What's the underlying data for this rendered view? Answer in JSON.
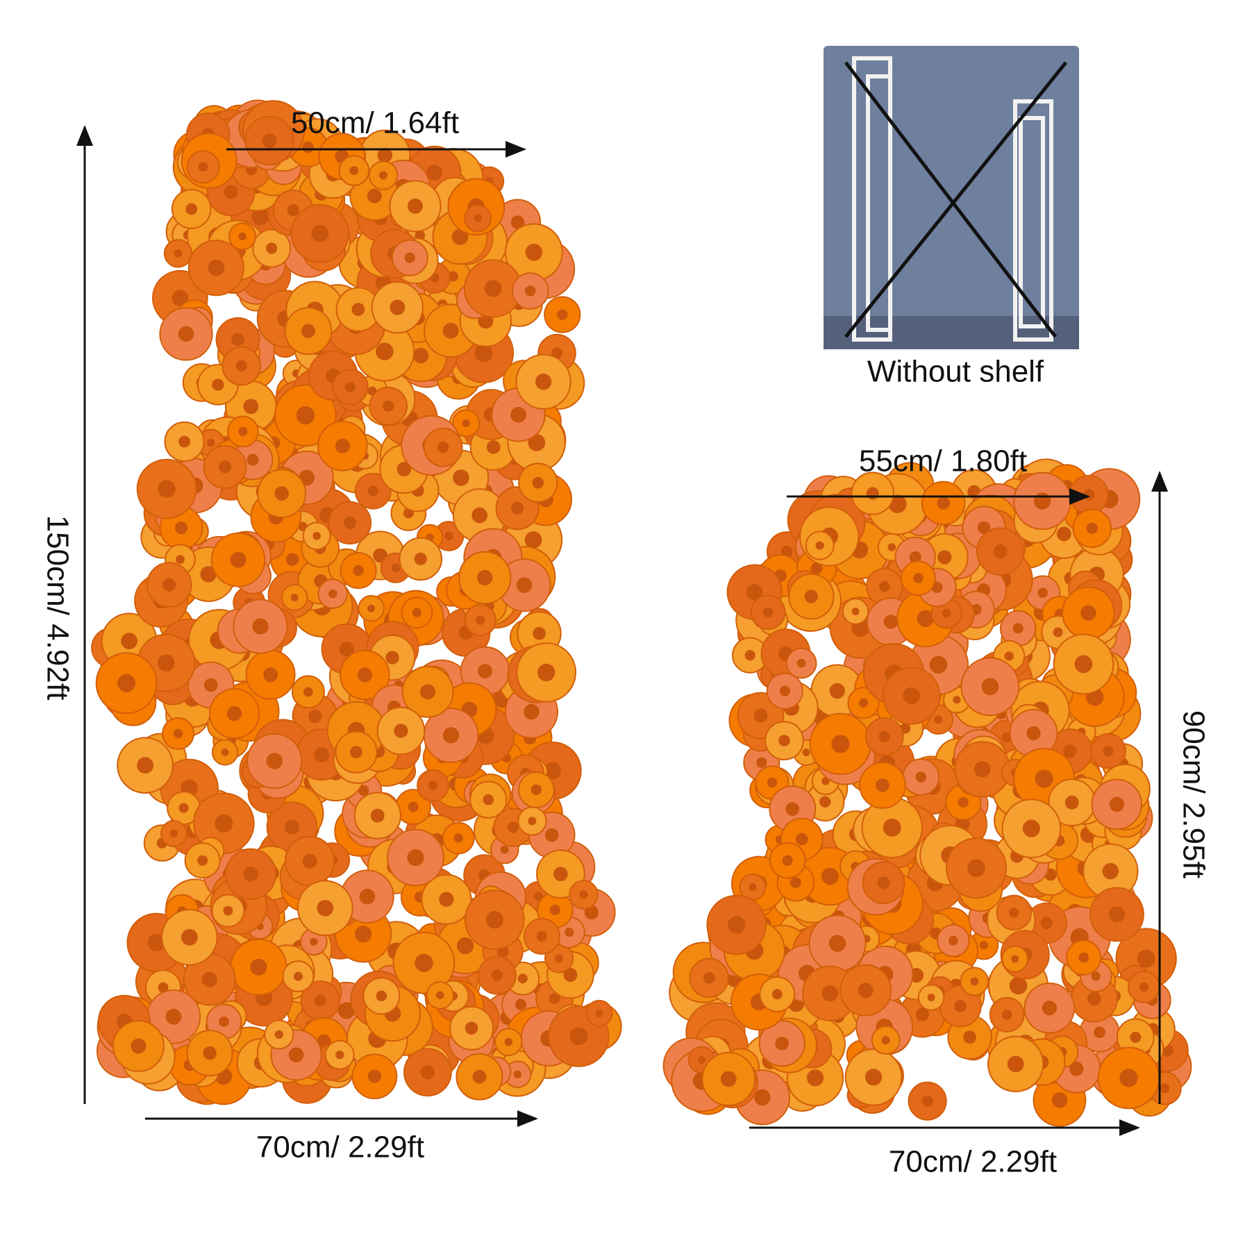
{
  "left_arrangement": {
    "top_width": "50cm/ 1.64ft",
    "height": "150cm/ 4.92ft",
    "bottom_width": "70cm/ 2.29ft"
  },
  "inset": {
    "caption": "Without shelf"
  },
  "right_arrangement": {
    "top_width": "55cm/ 1.80ft",
    "height": "90cm/ 2.95ft",
    "bottom_width": "70cm/ 2.29ft"
  }
}
